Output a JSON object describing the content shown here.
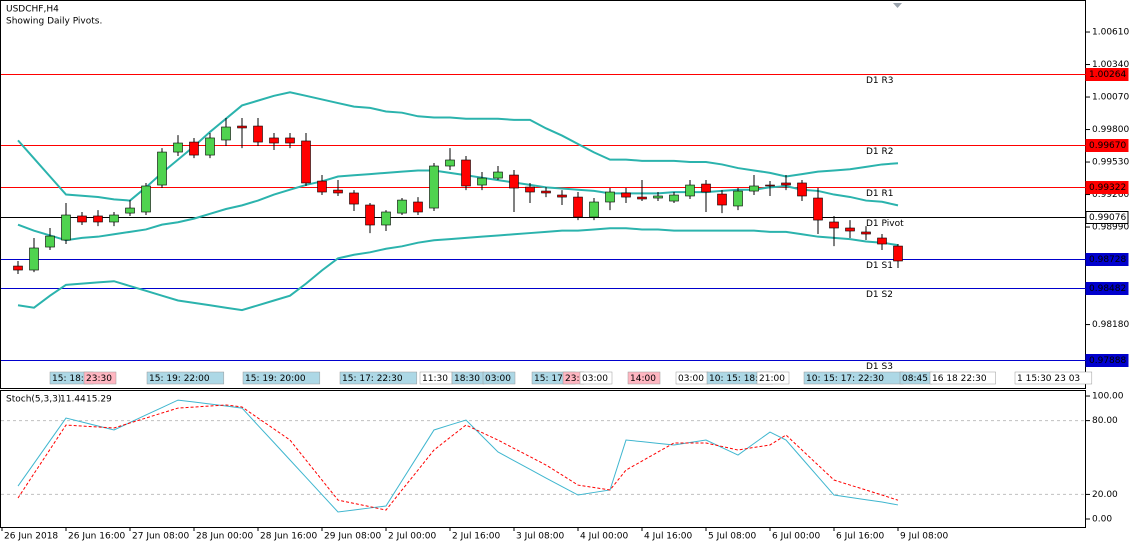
{
  "chart_data": [
    {
      "type": "candlestick",
      "title": "USDCHF,H4",
      "subtitle": "Showing Daily Pivots.",
      "ylim": [
        0.97653,
        1.00876
      ],
      "yticks": [
        {
          "value": 1.0061,
          "label": "1.00610"
        },
        {
          "value": 1.0034,
          "label": "1.00340"
        },
        {
          "value": 1.0007,
          "label": "1.00070"
        },
        {
          "value": 0.998,
          "label": "0.99800"
        },
        {
          "value": 0.9953,
          "label": "0.99530"
        },
        {
          "value": 0.9926,
          "label": "0.99260"
        },
        {
          "value": 0.9899,
          "label": "0.98990"
        },
        {
          "value": 0.9818,
          "label": "0.98180"
        }
      ],
      "up_color": "#4fd34f",
      "down_color": "#ff0000",
      "open": [
        0.98666,
        0.98633,
        0.98824,
        0.98882,
        0.99082,
        0.99082,
        0.99032,
        0.99106,
        0.99115,
        0.99339,
        0.99613,
        0.99696,
        0.99588,
        0.99713,
        0.99829,
        0.99829,
        0.9973,
        0.9973,
        0.99705,
        0.99372,
        0.99297,
        0.99273,
        0.99173,
        0.99007,
        0.99106,
        0.99198,
        0.99148,
        0.99497,
        0.99547,
        0.99339,
        0.99397,
        0.99422,
        0.99322,
        0.99289,
        0.99256,
        0.99239,
        0.99073,
        0.99198,
        0.99273,
        0.99239,
        0.99231,
        0.99206,
        0.99248,
        0.99347,
        0.99264,
        0.99165,
        0.99289,
        0.99339,
        0.99356,
        0.99356,
        0.99231,
        0.99032,
        0.98982,
        0.98949,
        0.98899,
        0.98832
      ],
      "high": [
        0.98708,
        0.98899,
        0.98982,
        0.9919,
        0.99115,
        0.99131,
        0.99115,
        0.99214,
        0.99356,
        0.99646,
        0.99754,
        0.9973,
        0.99771,
        0.99896,
        0.99896,
        0.99896,
        0.99771,
        0.99771,
        0.99771,
        0.99422,
        0.99381,
        0.99297,
        0.9919,
        0.99131,
        0.99231,
        0.99239,
        0.99522,
        0.99646,
        0.9958,
        0.99447,
        0.99497,
        0.99464,
        0.99356,
        0.99322,
        0.99297,
        0.99281,
        0.99231,
        0.99314,
        0.99314,
        0.99381,
        0.99281,
        0.99281,
        0.99381,
        0.99381,
        0.99297,
        0.99314,
        0.99422,
        0.99372,
        0.99422,
        0.99381,
        0.99314,
        0.99082,
        0.99048,
        0.98998,
        0.98932,
        0.98849
      ],
      "low": [
        0.986,
        0.98616,
        0.98799,
        0.98849,
        0.99007,
        0.98998,
        0.98998,
        0.99082,
        0.9909,
        0.99314,
        0.9958,
        0.99563,
        0.99563,
        0.99663,
        0.99646,
        0.99663,
        0.9963,
        0.99646,
        0.99331,
        0.99256,
        0.99248,
        0.99123,
        0.9894,
        0.98957,
        0.9909,
        0.9909,
        0.99123,
        0.99464,
        0.99297,
        0.99297,
        0.99381,
        0.99115,
        0.9919,
        0.99239,
        0.99173,
        0.99048,
        0.99048,
        0.99131,
        0.9919,
        0.99206,
        0.99206,
        0.9919,
        0.99223,
        0.99115,
        0.99106,
        0.99131,
        0.99256,
        0.99248,
        0.99297,
        0.99206,
        0.98932,
        0.98832,
        0.98899,
        0.98882,
        0.98799,
        0.9865
      ],
      "close": [
        0.98633,
        0.98816,
        0.98915,
        0.9909,
        0.99032,
        0.99032,
        0.9909,
        0.99148,
        0.99331,
        0.99613,
        0.99688,
        0.99588,
        0.9973,
        0.99821,
        0.99813,
        0.99696,
        0.99688,
        0.99688,
        0.99356,
        0.99281,
        0.99273,
        0.99181,
        0.99007,
        0.99115,
        0.99214,
        0.99115,
        0.99497,
        0.99547,
        0.99331,
        0.99397,
        0.99447,
        0.99314,
        0.99281,
        0.99273,
        0.99239,
        0.99073,
        0.99198,
        0.99281,
        0.99239,
        0.99223,
        0.99248,
        0.99256,
        0.99339,
        0.99281,
        0.99173,
        0.99289,
        0.99331,
        0.99331,
        0.99339,
        0.99248,
        0.99048,
        0.98982,
        0.98957,
        0.98932,
        0.98849,
        0.98708
      ],
      "bands": {
        "color": "#2bb3ad",
        "series": [
          {
            "values": [
              0.9971,
              0.9956,
              0.9941,
              0.9926,
              0.9925,
              0.9924,
              0.9922,
              0.9921,
              0.9932,
              0.9944,
              0.9955,
              0.9966,
              0.9978,
              0.9989,
              1.0,
              1.0004,
              1.0008,
              1.0011,
              1.0008,
              1.0005,
              1.0002,
              0.9999,
              0.9998,
              0.9995,
              0.9994,
              0.9991,
              0.999,
              0.999,
              0.9989,
              0.9989,
              0.9989,
              0.9988,
              0.9988,
              0.9981,
              0.9975,
              0.9968,
              0.9961,
              0.9955,
              0.9955,
              0.9954,
              0.9954,
              0.9954,
              0.9953,
              0.9953,
              0.9951,
              0.9948,
              0.9946,
              0.9944,
              0.9941,
              0.9943,
              0.9945,
              0.9946,
              0.9947,
              0.9949,
              0.9951,
              0.9952
            ]
          },
          {
            "values": [
              0.9901,
              0.9896,
              0.9892,
              0.9888,
              0.989,
              0.9891,
              0.9893,
              0.9895,
              0.9897,
              0.9901,
              0.9903,
              0.9906,
              0.991,
              0.9914,
              0.9917,
              0.9921,
              0.9926,
              0.993,
              0.9934,
              0.9937,
              0.9941,
              0.9942,
              0.9943,
              0.9944,
              0.9945,
              0.9946,
              0.9946,
              0.9944,
              0.9942,
              0.994,
              0.9938,
              0.9936,
              0.9934,
              0.9932,
              0.9931,
              0.993,
              0.9929,
              0.9927,
              0.9927,
              0.9927,
              0.9927,
              0.9928,
              0.9928,
              0.9928,
              0.9929,
              0.993,
              0.993,
              0.9932,
              0.9933,
              0.993,
              0.9929,
              0.9926,
              0.9924,
              0.9921,
              0.992,
              0.9917
            ]
          },
          {
            "values": [
              0.9834,
              0.9832,
              0.9842,
              0.9851,
              0.9852,
              0.9853,
              0.9854,
              0.985,
              0.9846,
              0.9842,
              0.9838,
              0.9836,
              0.9834,
              0.9832,
              0.983,
              0.9834,
              0.9838,
              0.9842,
              0.9852,
              0.9863,
              0.9873,
              0.9876,
              0.9878,
              0.9881,
              0.9883,
              0.9886,
              0.9888,
              0.9889,
              0.989,
              0.9891,
              0.9892,
              0.9893,
              0.9894,
              0.9895,
              0.9896,
              0.9896,
              0.9897,
              0.9898,
              0.9898,
              0.9897,
              0.9897,
              0.9896,
              0.9896,
              0.9896,
              0.9896,
              0.9896,
              0.9896,
              0.9895,
              0.9895,
              0.9893,
              0.9891,
              0.989,
              0.9889,
              0.9887,
              0.9886,
              0.9884
            ]
          }
        ]
      },
      "pivots": [
        {
          "name": "D1 R3",
          "value": 1.00264,
          "label": "1.00264",
          "color": "#ff0000"
        },
        {
          "name": "D1 R2",
          "value": 0.9967,
          "label": "0.99670",
          "color": "#ff0000"
        },
        {
          "name": "D1 R1",
          "value": 0.99322,
          "label": "0.99322",
          "color": "#ff0000"
        },
        {
          "name": "D1 Pivot",
          "value": 0.99076,
          "label": "0.99076",
          "color": "#000000"
        },
        {
          "name": "D1 S1",
          "value": 0.98728,
          "label": "0.98728",
          "color": "#0000cd"
        },
        {
          "name": "D1 S2",
          "value": 0.98482,
          "label": "0.98482",
          "color": "#0000cd"
        },
        {
          "name": "D1 S3",
          "value": 0.97888,
          "label": "0.97888",
          "color": "#0000cd"
        }
      ],
      "categories": [
        "26 Jun 2018",
        "26 Jun 16:00",
        "27 Jun 08:00",
        "28 Jun 00:00",
        "28 Jun 16:00",
        "29 Jun 08:00",
        "2 Jul 00:00",
        "2 Jul 16:00",
        "3 Jul 08:00",
        "4 Jul 00:00",
        "4 Jul 16:00",
        "5 Jul 08:00",
        "6 Jul 00:00",
        "6 Jul 16:00",
        "9 Jul 08:00"
      ],
      "sessions": [
        {
          "label": "15: 18:",
          "color": "#add8e6"
        },
        {
          "label": "23:30",
          "color": "#ffb6c1"
        },
        {
          "label": "15: 19: 22:00",
          "color": "#add8e6"
        },
        {
          "label": "15: 19: 20:00",
          "color": "#add8e6"
        },
        {
          "label": "15: 17: 22:30",
          "color": "#add8e6"
        },
        {
          "label": "11:30",
          "color": "#ffffff"
        },
        {
          "label": "18:30",
          "color": "#add8e6"
        },
        {
          "label": "03:00",
          "color": "#add8e6"
        },
        {
          "label": "15: 17:",
          "color": "#add8e6"
        },
        {
          "label": "23:",
          "color": "#ffb6c1"
        },
        {
          "label": "03:00",
          "color": "#ffffff"
        },
        {
          "label": "14:00",
          "color": "#ffb6c1"
        },
        {
          "label": "03:00",
          "color": "#ffffff"
        },
        {
          "label": "10: 15: 18:",
          "color": "#add8e6"
        },
        {
          "label": "21:00",
          "color": "#ffffff"
        },
        {
          "label": "10: 15: 17: 22:30",
          "color": "#add8e6"
        },
        {
          "label": "08:45",
          "color": "#add8e6"
        },
        {
          "label": "16 18 22:30",
          "color": "#ffffff"
        },
        {
          "label": "1 15:30 23 03",
          "color": "#ffffff"
        }
      ]
    },
    {
      "type": "line",
      "title": "Stoch(5,3,3)",
      "ylim": [
        -6.5,
        104.9
      ],
      "yticks": [
        {
          "value": 100,
          "label": "100.00"
        },
        {
          "value": 80,
          "label": "80.00"
        },
        {
          "value": 20,
          "label": "20.00"
        },
        {
          "value": 0,
          "label": "0.00"
        }
      ],
      "series": [
        {
          "color": "#3fb6cf",
          "dashed": false,
          "values": [
            26.8,
            45.2,
            63.7,
            82.1,
            78.9,
            75.6,
            72.4,
            78.5,
            84.6,
            90.6,
            96.7,
            95.1,
            93.5,
            91.9,
            90.2,
            76.1,
            62.1,
            48.0,
            33.9,
            19.8,
            5.7,
            7.3,
            9.0,
            10.6,
            31.2,
            51.8,
            72.4,
            76.5,
            80.5,
            67.5,
            54.5,
            47.4,
            40.4,
            33.3,
            26.4,
            19.5,
            21.6,
            23.6,
            64.2,
            62.9,
            61.5,
            60.2,
            62.2,
            64.2,
            58.1,
            52.0,
            61.4,
            70.7,
            64.2,
            49.3,
            34.4,
            19.5,
            17.6,
            15.7,
            13.8,
            11.44
          ]
        },
        {
          "color": "#ff0000",
          "dashed": true,
          "values": [
            17.1,
            36.9,
            56.6,
            76.4,
            75.6,
            74.8,
            74.0,
            78.1,
            82.1,
            86.2,
            90.2,
            91.0,
            91.9,
            92.7,
            91.1,
            82.1,
            73.2,
            64.2,
            47.9,
            31.7,
            15.4,
            12.7,
            10.0,
            7.3,
            23.6,
            39.8,
            56.1,
            66.3,
            76.4,
            70.3,
            64.2,
            57.4,
            50.7,
            43.9,
            35.8,
            27.6,
            25.6,
            23.6,
            39.8,
            47.1,
            54.5,
            61.8,
            61.8,
            61.8,
            59.0,
            56.1,
            58.2,
            60.2,
            68.3,
            56.1,
            43.9,
            31.7,
            27.6,
            23.6,
            19.5,
            15.29
          ]
        }
      ]
    }
  ]
}
